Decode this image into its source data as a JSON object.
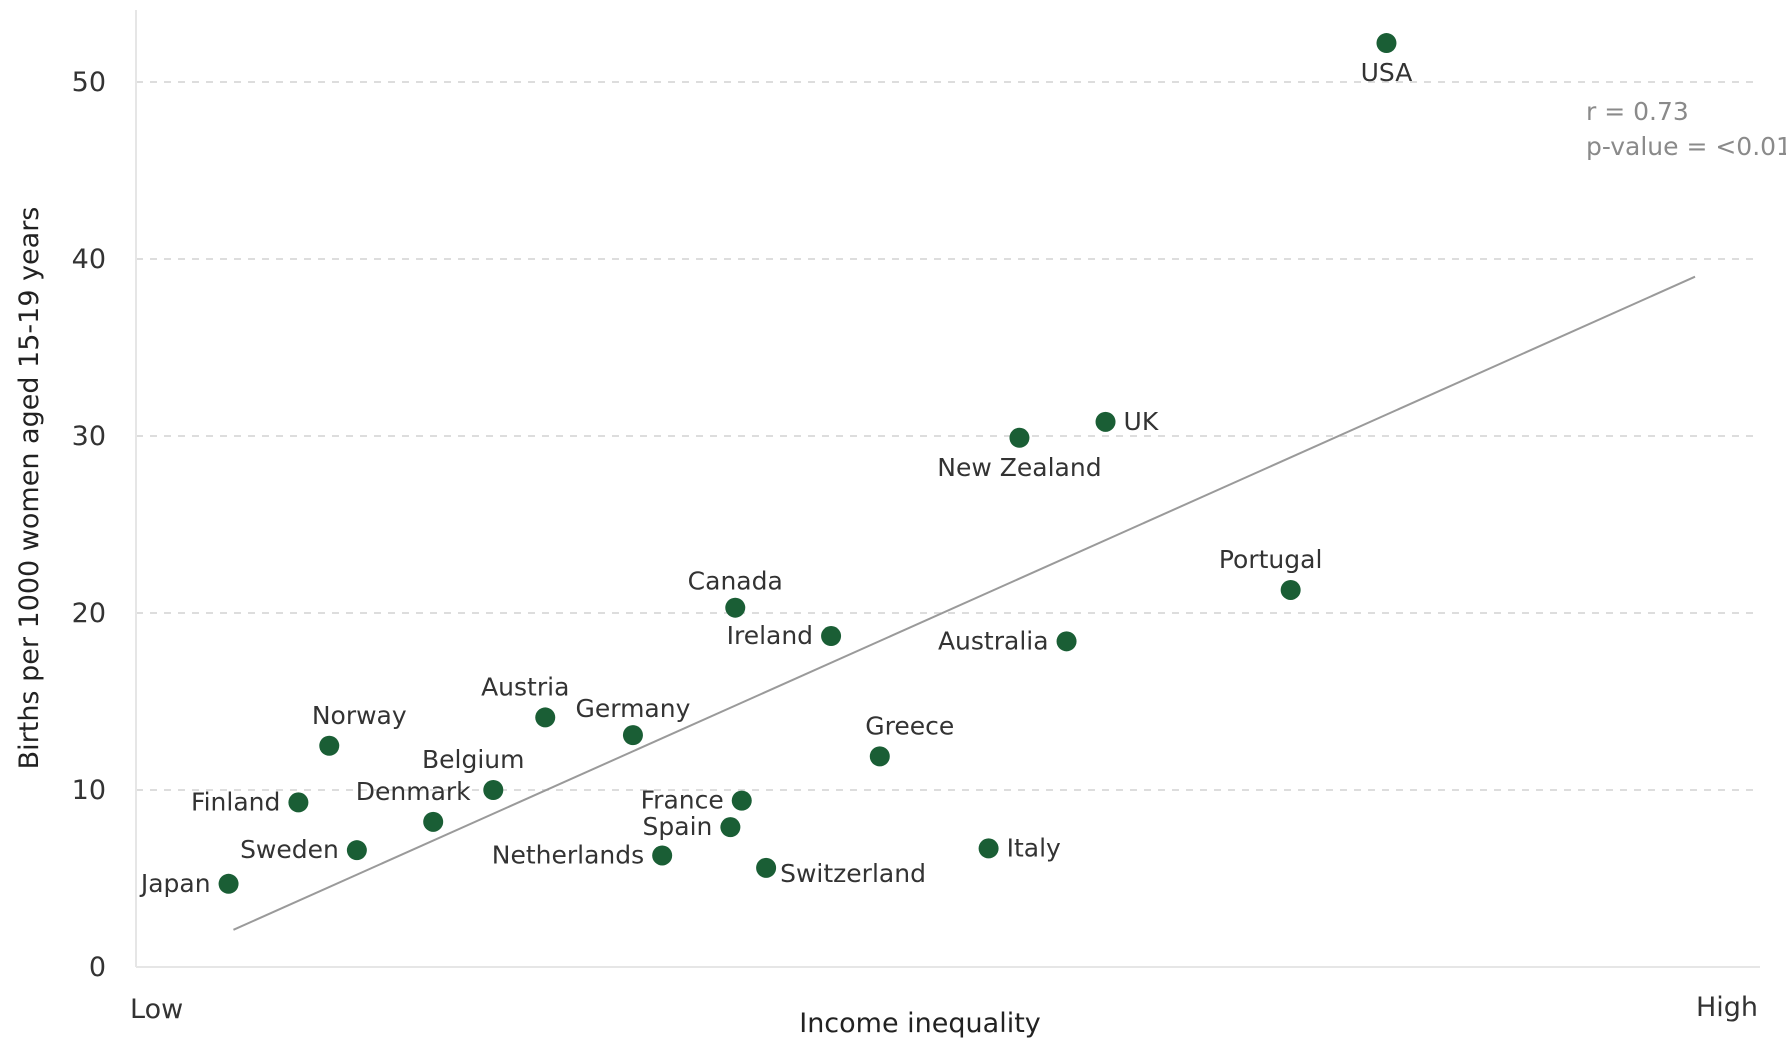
{
  "chart_data": {
    "type": "scatter",
    "title": "",
    "xlabel": "Income inequality",
    "ylabel": "Births per 1000 women aged 15-19 years",
    "x_low_label": "Low",
    "x_high_label": "High",
    "ylim": [
      0,
      55
    ],
    "xlim": [
      0,
      100
    ],
    "yticks": [
      0,
      10,
      20,
      30,
      40,
      50
    ],
    "grid": true,
    "point_color": "#1a5e35",
    "trend_color": "#9a9a9a",
    "stats": [
      "r = 0.73",
      "p-value = <0.01"
    ],
    "trendline": {
      "x": [
        6,
        96
      ],
      "y": [
        2.1,
        39.0
      ]
    },
    "points": [
      {
        "label": "USA",
        "x": 77.0,
        "y": 52.2,
        "anchor": "below"
      },
      {
        "label": "UK",
        "x": 59.7,
        "y": 30.8,
        "anchor": "right"
      },
      {
        "label": "New Zealand",
        "x": 54.4,
        "y": 29.9,
        "anchor": "below"
      },
      {
        "label": "Portugal",
        "x": 71.1,
        "y": 21.3,
        "anchor": "above-left"
      },
      {
        "label": "Canada",
        "x": 36.9,
        "y": 20.3,
        "anchor": "above"
      },
      {
        "label": "Ireland",
        "x": 42.8,
        "y": 18.7,
        "anchor": "left"
      },
      {
        "label": "Australia",
        "x": 57.3,
        "y": 18.4,
        "anchor": "left"
      },
      {
        "label": "Austria",
        "x": 25.2,
        "y": 14.1,
        "anchor": "above-left"
      },
      {
        "label": "Germany",
        "x": 30.6,
        "y": 13.1,
        "anchor": "above"
      },
      {
        "label": "Norway",
        "x": 11.9,
        "y": 12.5,
        "anchor": "above-right"
      },
      {
        "label": "Greece",
        "x": 45.8,
        "y": 11.9,
        "anchor": "above-right"
      },
      {
        "label": "Belgium",
        "x": 22.0,
        "y": 10.0,
        "anchor": "above-left"
      },
      {
        "label": "France",
        "x": 37.3,
        "y": 9.4,
        "anchor": "left"
      },
      {
        "label": "Finland",
        "x": 10.0,
        "y": 9.3,
        "anchor": "left"
      },
      {
        "label": "Denmark",
        "x": 18.3,
        "y": 8.2,
        "anchor": "above-left"
      },
      {
        "label": "Spain",
        "x": 36.6,
        "y": 7.9,
        "anchor": "left"
      },
      {
        "label": "Italy",
        "x": 52.5,
        "y": 6.7,
        "anchor": "right"
      },
      {
        "label": "Sweden",
        "x": 13.6,
        "y": 6.6,
        "anchor": "left"
      },
      {
        "label": "Netherlands",
        "x": 32.4,
        "y": 6.3,
        "anchor": "left"
      },
      {
        "label": "Switzerland",
        "x": 38.8,
        "y": 5.6,
        "anchor": "right-below"
      },
      {
        "label": "Japan",
        "x": 5.7,
        "y": 4.7,
        "anchor": "left"
      }
    ]
  }
}
